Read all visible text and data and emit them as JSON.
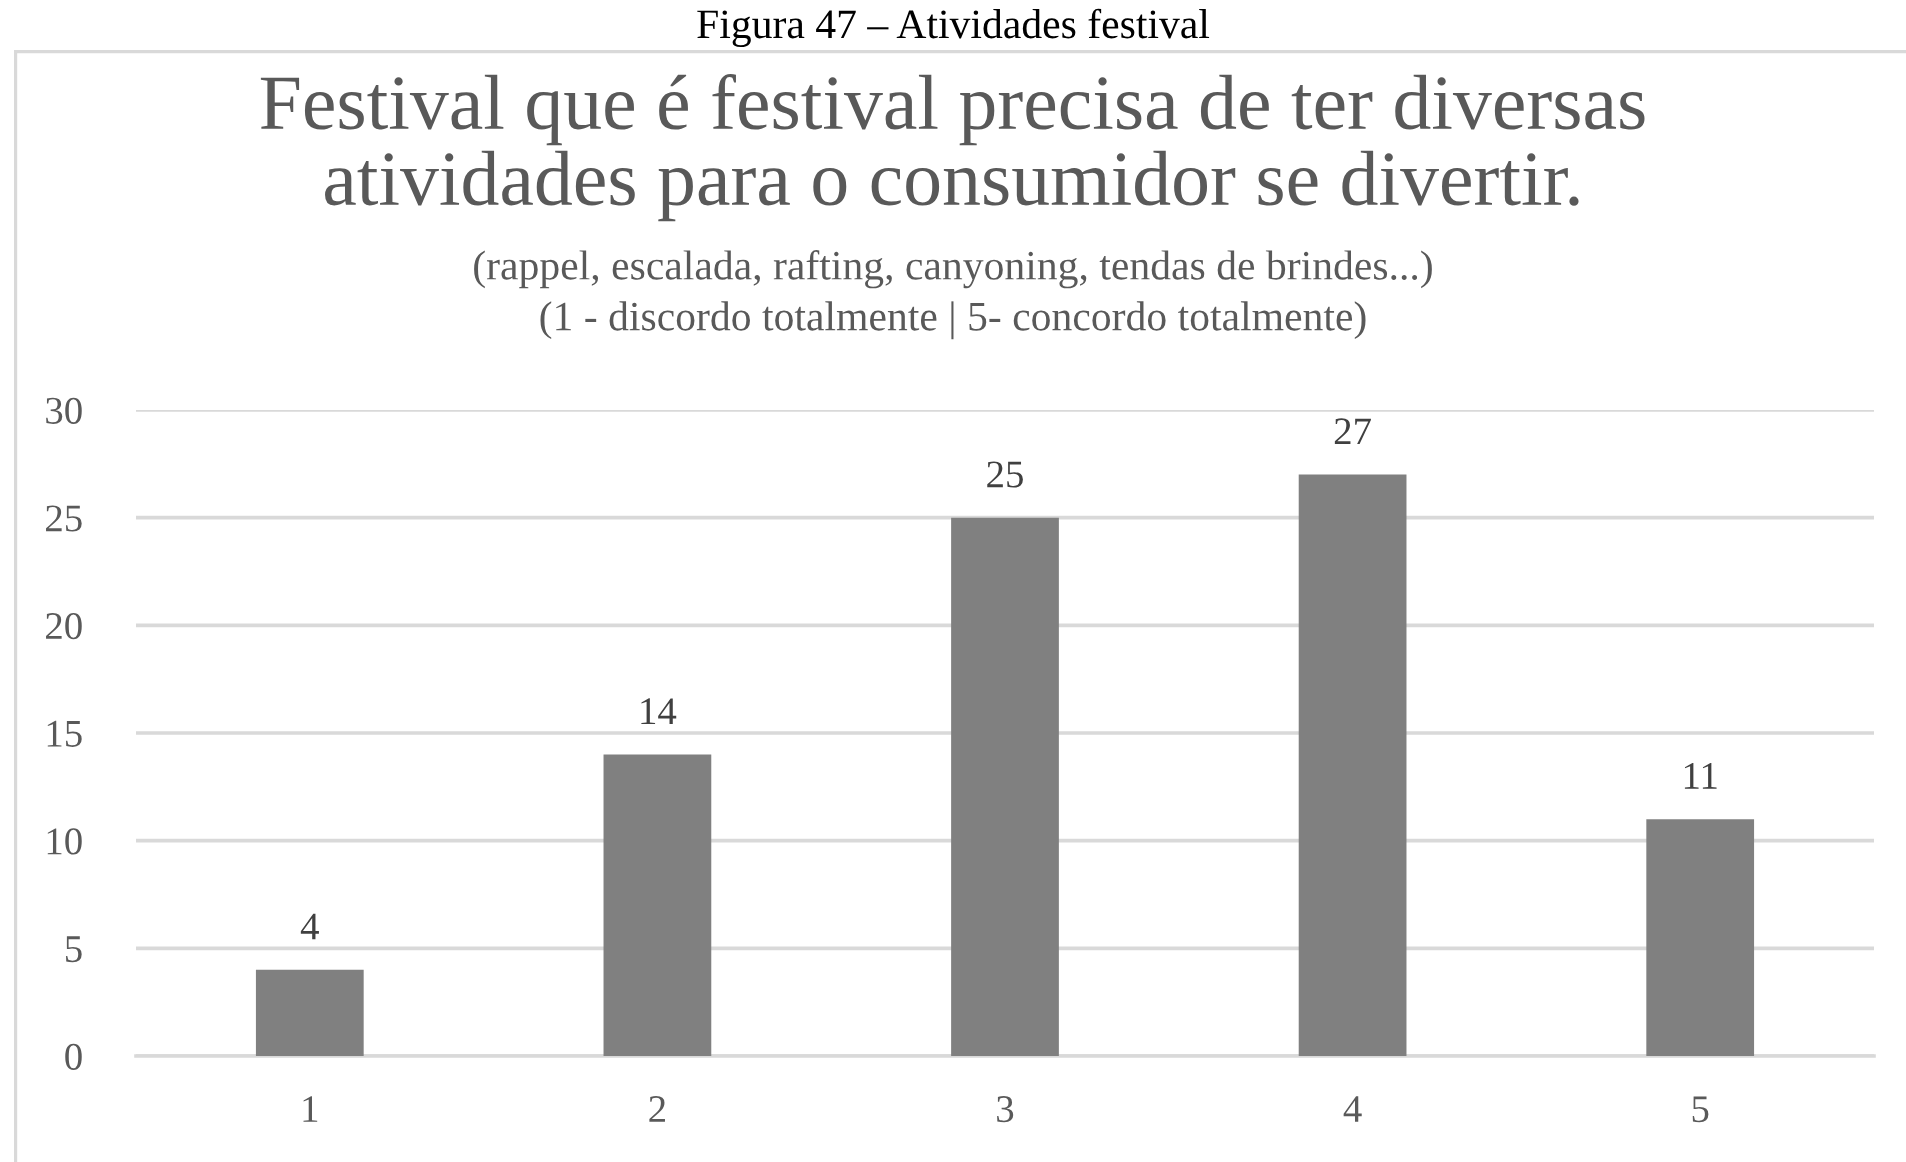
{
  "chart_data": {
    "type": "bar",
    "title": "Festival que é festival precisa de ter diversas\natividades para o consumidor se divertir.",
    "subtitle": "(rappel, escalada, rafting, canyoning, tendas de brindes...)\n(1 - discordo totalmente | 5- concordo totalmente)",
    "annotations": [
      "Figura 47 – Atividades festival"
    ],
    "categories": [
      "1",
      "2",
      "3",
      "4",
      "5"
    ],
    "values": [
      4,
      14,
      25,
      27,
      11
    ],
    "color": "#808080",
    "ylim": [
      0,
      30
    ],
    "yticks": [
      0,
      5,
      10,
      15,
      20,
      25,
      30
    ],
    "grid": "y",
    "data_labels": true
  }
}
